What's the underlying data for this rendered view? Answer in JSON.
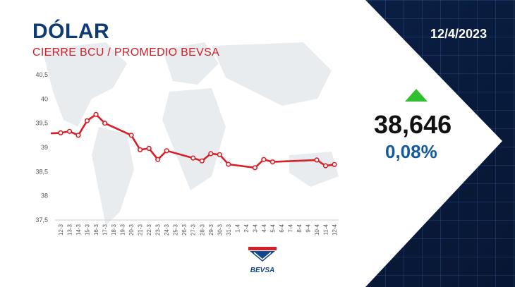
{
  "header": {
    "title": "DÓLAR",
    "subtitle": "CIERRE BCU / PROMEDIO BEVSA",
    "date": "12/4/2023"
  },
  "quote": {
    "value": "38,646",
    "change": "0,08%",
    "direction": "up",
    "arrow_icon": "triangle-up-icon"
  },
  "logo": {
    "text": "BEVSA"
  },
  "colors": {
    "title": "#0f3b73",
    "subtitle": "#d21f28",
    "line": "#d81e27",
    "up": "#2fc02f",
    "change": "#145aa0"
  },
  "chart_data": {
    "type": "line",
    "categories": [
      "12-3",
      "13-3",
      "14-3",
      "15-3",
      "16-3",
      "17-3",
      "18-3",
      "19-3",
      "20-3",
      "21-3",
      "22-3",
      "23-3",
      "24-3",
      "25-3",
      "26-3",
      "27-3",
      "28-3",
      "29-3",
      "30-3",
      "31-3",
      "1-4",
      "2-4",
      "3-4",
      "4-4",
      "5-4",
      "6-4",
      "7-4",
      "8-4",
      "9-4",
      "10-4",
      "11-4",
      "12-4"
    ],
    "series": [
      {
        "values": [
          39.3,
          39.33,
          39.25,
          39.55,
          39.68,
          39.5,
          null,
          null,
          39.25,
          38.95,
          38.98,
          38.75,
          38.93,
          null,
          null,
          38.78,
          38.72,
          38.87,
          38.85,
          38.65,
          null,
          null,
          38.58,
          38.75,
          38.7,
          null,
          null,
          null,
          null,
          38.74,
          38.62,
          38.646
        ]
      }
    ],
    "y_ticks": [
      "37,5",
      "38",
      "38,5",
      "39",
      "39,5",
      "40",
      "40,5"
    ],
    "ylim": [
      37.5,
      40.5
    ],
    "grid": false,
    "legend": "none",
    "markers": "open-circle"
  }
}
